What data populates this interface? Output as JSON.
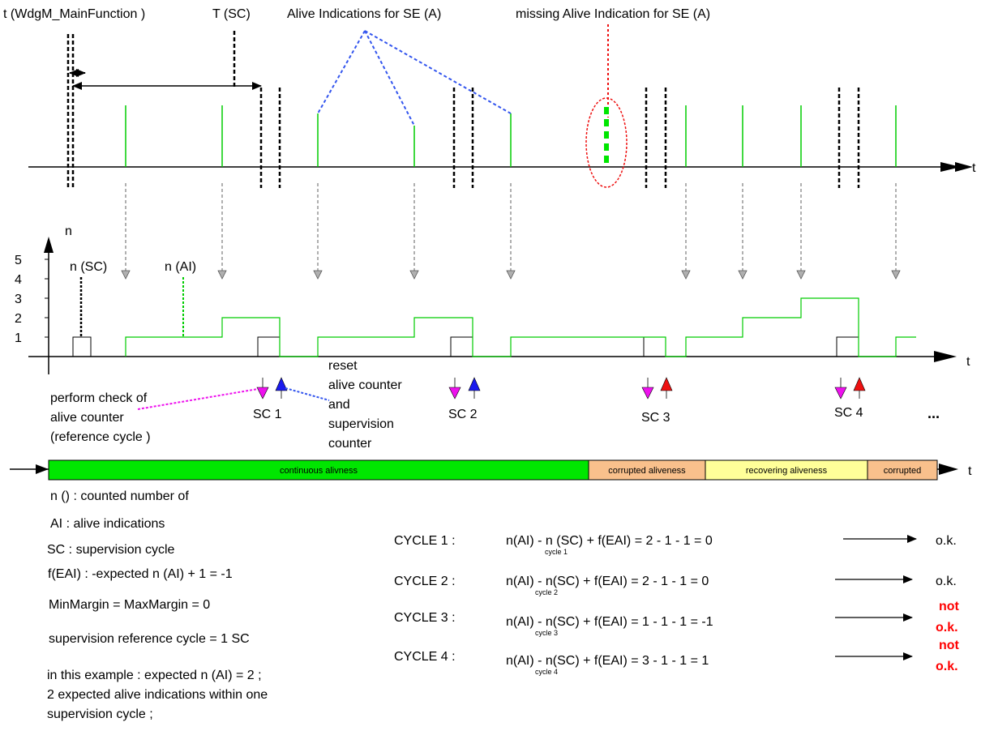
{
  "labels": {
    "t_main": "t (WdgM_MainFunction )",
    "t_sc": "T (SC)",
    "alive_ind": "Alive Indications for SE (A)",
    "missing": "missing Alive Indication for SE (A)",
    "t_axis": "t",
    "n_axis": "n",
    "n_sc": "n (SC)",
    "n_ai": "n (AI)",
    "reset_1": "reset",
    "reset_2": "alive counter",
    "reset_3": "and",
    "reset_4": "supervision",
    "reset_5": "counter",
    "perform_1": "perform check of",
    "perform_2": "alive counter",
    "perform_3": "(reference cycle )",
    "sc1": "SC 1",
    "sc2": "SC 2",
    "sc3": "SC 3",
    "sc4": "SC 4",
    "ellipsis": "...",
    "y_ticks": [
      "1",
      "2",
      "3",
      "4",
      "5"
    ]
  },
  "bar": {
    "continuous": "continuous alivness",
    "corrupted_1": "corrupted aliveness",
    "recovering": "recovering aliveness",
    "corrupted_2": "corrupted"
  },
  "legend": {
    "n_def": "n () : counted number of",
    "ai_def": "AI : alive indications",
    "sc_def": "SC : supervision cycle",
    "feai_def": "f(EAI) : -expected n (AI) + 1 = -1",
    "margin_def": "MinMargin = MaxMargin = 0",
    "ref_def": "supervision reference cycle = 1 SC",
    "example_1": "in this example : expected n (AI) = 2 ;",
    "example_2": "2 expected alive indications within one",
    "example_3": "supervision cycle ;"
  },
  "cycles": [
    {
      "label": "CYCLE 1 :",
      "sub": "cycle 1",
      "formula_a": "n(AI)",
      "formula_b": " - n (SC) + f(EAI) = 2 - 1 - 1 = 0",
      "result": "o.k.",
      "ok": true
    },
    {
      "label": "CYCLE 2 :",
      "sub": "cycle 2",
      "formula_a": "n(AI)",
      "formula_b": " - n(SC) + f(EAI) = 2 - 1 - 1 = 0",
      "result": "o.k.",
      "ok": true
    },
    {
      "label": "CYCLE 3 :",
      "sub": "cycle 3",
      "formula_a": "n(AI)",
      "formula_b": " - n(SC) + f(EAI) = 1 - 1 - 1 = -1",
      "result": "not o.k.",
      "ok": false
    },
    {
      "label": "CYCLE 4 :",
      "sub": "cycle 4",
      "formula_a": "n(AI)",
      "formula_b": " - n(SC) + f(EAI) = 3 - 1 - 1 = 1",
      "result": "not o.k.",
      "ok": false
    }
  ],
  "colors": {
    "green": "#00cc00",
    "bar_green": "#00e600",
    "bar_orange": "#f9c08c",
    "bar_yellow": "#ffff99",
    "dashed_blue": "#3355ee",
    "dashed_red": "#ee1111",
    "magenta": "#ee11ee",
    "gray_arrow": "#b0b0b0"
  }
}
